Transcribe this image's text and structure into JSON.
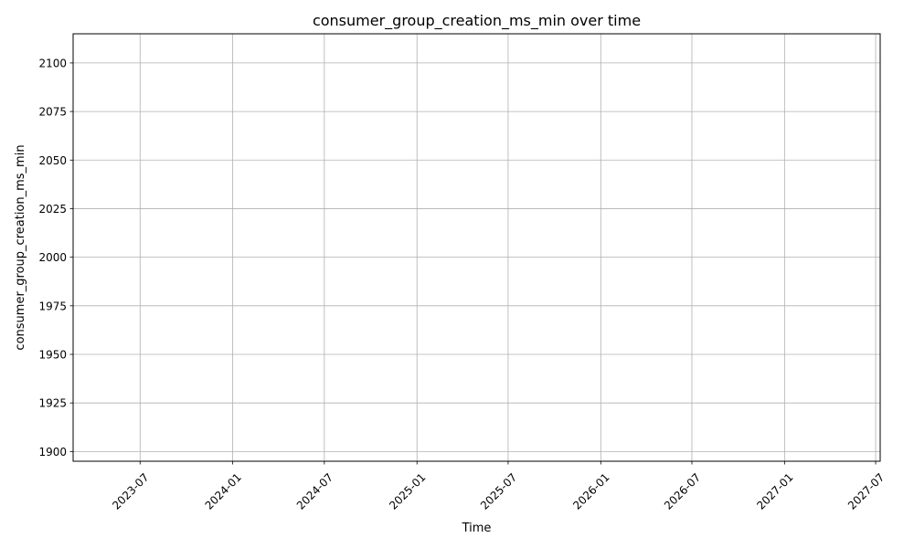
{
  "chart_data": {
    "type": "line",
    "title": "consumer_group_creation_ms_min over time",
    "xlabel": "Time",
    "ylabel": "consumer_group_creation_ms_min",
    "x_type": "date",
    "xlim": [
      "2023-02-18",
      "2027-07-10"
    ],
    "ylim": [
      1895,
      2115
    ],
    "x_ticks": [
      "2023-07",
      "2024-01",
      "2024-07",
      "2025-01",
      "2025-07",
      "2026-01",
      "2026-07",
      "2027-01",
      "2027-07"
    ],
    "y_ticks": [
      1900,
      1925,
      1950,
      1975,
      2000,
      2025,
      2050,
      2075,
      2100
    ],
    "grid": true,
    "series": []
  }
}
